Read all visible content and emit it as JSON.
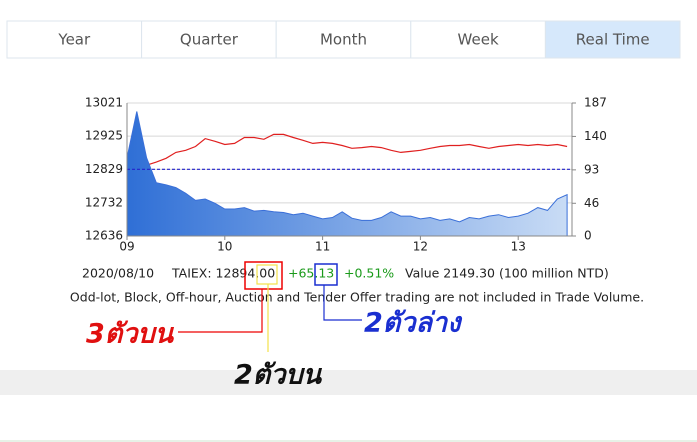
{
  "tabs": {
    "items": [
      "Year",
      "Quarter",
      "Month",
      "Week",
      "Real Time"
    ],
    "active_index": 4
  },
  "chart_data": {
    "type": "line",
    "x": [
      9.0,
      9.1,
      9.2,
      9.3,
      9.4,
      9.5,
      9.6,
      9.7,
      9.8,
      9.9,
      10.0,
      10.1,
      10.2,
      10.3,
      10.4,
      10.5,
      10.6,
      10.7,
      10.8,
      10.9,
      11.0,
      11.1,
      11.2,
      11.3,
      11.4,
      11.5,
      11.6,
      11.7,
      11.8,
      11.9,
      12.0,
      12.1,
      12.2,
      12.3,
      12.4,
      12.5,
      12.6,
      12.7,
      12.8,
      12.9,
      13.0,
      13.1,
      13.2,
      13.3,
      13.4,
      13.5
    ],
    "series": [
      {
        "color": "#e02020",
        "values": [
          12831,
          12824,
          12841,
          12850,
          12861,
          12878,
          12884,
          12895,
          12918,
          12910,
          12901,
          12904,
          12921,
          12921,
          12916,
          12930,
          12930,
          12921,
          12913,
          12904,
          12907,
          12904,
          12898,
          12890,
          12892,
          12895,
          12892,
          12884,
          12878,
          12881,
          12884,
          12890,
          12895,
          12898,
          12898,
          12901,
          12895,
          12890,
          12895,
          12898,
          12901,
          12898,
          12901,
          12898,
          12901,
          12895
        ]
      },
      {
        "color": "#3a6fd8",
        "axis": "y2",
        "fill": "area",
        "values": [
          110,
          175,
          110,
          75,
          72,
          68,
          60,
          50,
          52,
          46,
          38,
          38,
          40,
          35,
          36,
          34,
          33,
          30,
          32,
          28,
          24,
          26,
          34,
          25,
          22,
          22,
          26,
          34,
          28,
          28,
          24,
          26,
          22,
          24,
          20,
          26,
          24,
          28,
          30,
          26,
          28,
          32,
          40,
          36,
          52,
          58
        ]
      }
    ],
    "reference_line": 12829,
    "reference_color": "#2222cc",
    "xlim": [
      9,
      13.55
    ],
    "xticks": [
      {
        "value": 9,
        "label": "09"
      },
      10,
      11,
      12,
      13
    ],
    "ylim": [
      12636,
      13021
    ],
    "yticks": [
      12636,
      12732,
      12829,
      12925,
      13021
    ],
    "y2lim": [
      0,
      187
    ],
    "y2ticks": [
      0,
      46,
      93,
      140,
      187
    ],
    "grid": true
  },
  "info": {
    "date": "2020/08/10",
    "taiex": "TAIEX: 12894.00",
    "change": "+65.13",
    "percent": "+0.51%",
    "value": "Value 2149.30 (100 million NTD)",
    "note": "Odd-lot, Block, Off-hour, Auction and Tender Offer trading are not included in Trade Volume."
  },
  "annotations": {
    "top3": "3ตัวบน",
    "bottom2": "2ตัวล่าง",
    "top2": "2ตัวบน"
  }
}
